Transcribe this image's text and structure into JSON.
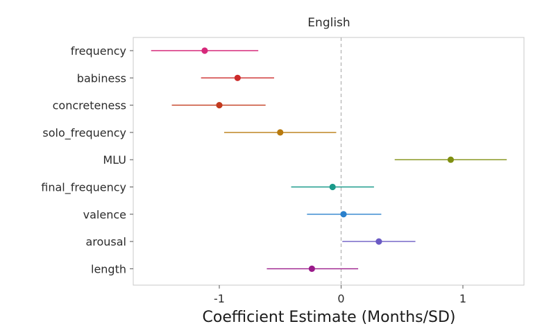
{
  "chart_data": {
    "type": "scatter",
    "title": "English",
    "xlabel": "Coefficient Estimate (Months/SD)",
    "ylabel": "",
    "xlim": [
      -1.7,
      1.5
    ],
    "x_ticks": [
      -1,
      0,
      1
    ],
    "x_tick_labels": [
      "-1",
      "0",
      "1"
    ],
    "reference_line_x": 0,
    "grid": false,
    "categories": [
      "frequency",
      "babiness",
      "concreteness",
      "solo_frequency",
      "MLU",
      "final_frequency",
      "valence",
      "arousal",
      "length"
    ],
    "series": [
      {
        "values": [
          -1.12,
          -0.85,
          -1.0,
          -0.5,
          0.9,
          -0.07,
          0.02,
          0.31,
          -0.24
        ],
        "lower": [
          -1.56,
          -1.15,
          -1.39,
          -0.96,
          0.44,
          -0.41,
          -0.28,
          0.01,
          -0.61
        ],
        "upper": [
          -0.68,
          -0.55,
          -0.62,
          -0.04,
          1.36,
          0.27,
          0.33,
          0.61,
          0.14
        ],
        "colors": [
          "#d6287a",
          "#cc2a2a",
          "#c23a1e",
          "#b87a0e",
          "#7f8f10",
          "#1a9a8a",
          "#2a80cc",
          "#6a5ac4",
          "#9a1a8a"
        ]
      }
    ]
  }
}
